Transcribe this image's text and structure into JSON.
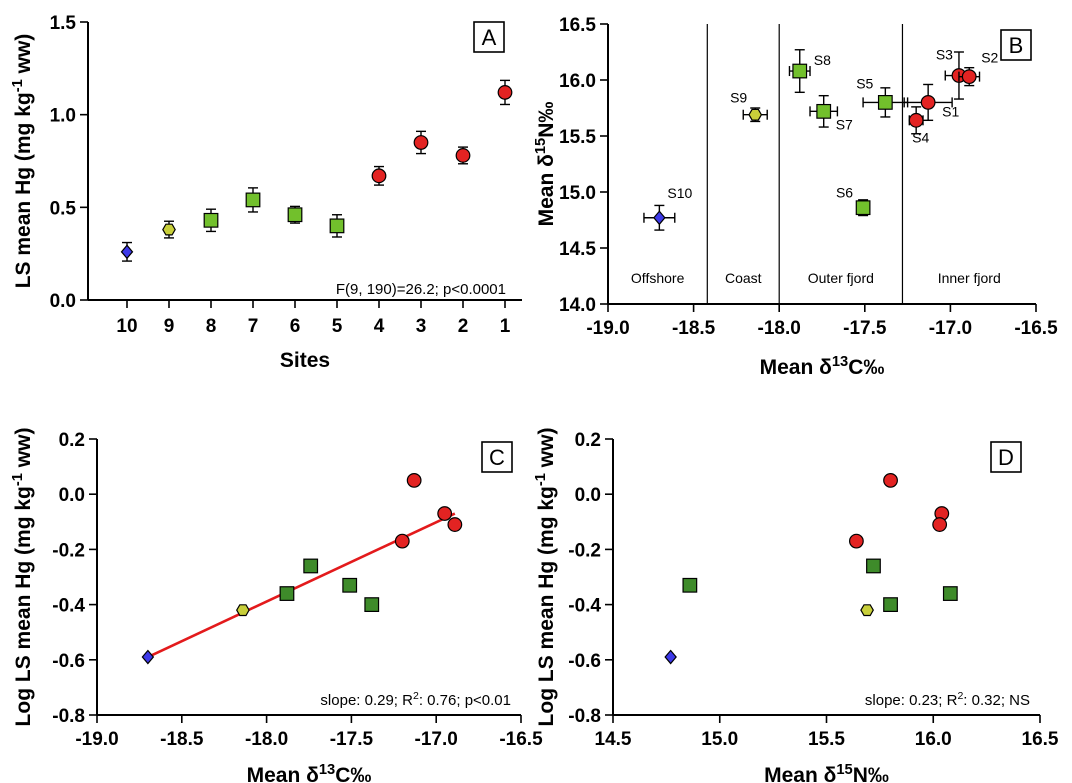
{
  "colors": {
    "inner_fjord": "#e32322",
    "outer_fjord": "#72c02c",
    "outer_fjord_dark": "#3e8b2a",
    "coast": "#c8cf3a",
    "offshore": "#3d39e8",
    "fit_line": "#e31a1c"
  },
  "chart_data": [
    {
      "panel": "A",
      "type": "scatter",
      "xlabel": "Sites",
      "ylabel": "LS mean Hg (mg kg-1 ww)",
      "categories": [
        "10",
        "9",
        "8",
        "7",
        "6",
        "5",
        "4",
        "3",
        "2",
        "1"
      ],
      "ylim": [
        0,
        1.5
      ],
      "yticks": [
        "0.0",
        "0.5",
        "1.0",
        "1.5"
      ],
      "annotation": "F(9, 190)=26.2; p<0.0001",
      "points": [
        {
          "site": "10",
          "y": 0.26,
          "err": 0.05,
          "marker": "diamond",
          "color": "offshore"
        },
        {
          "site": "9",
          "y": 0.38,
          "err": 0.045,
          "marker": "hexagon",
          "color": "coast"
        },
        {
          "site": "8",
          "y": 0.43,
          "err": 0.06,
          "marker": "square",
          "color": "outer_fjord"
        },
        {
          "site": "7",
          "y": 0.54,
          "err": 0.065,
          "marker": "square",
          "color": "outer_fjord"
        },
        {
          "site": "6",
          "y": 0.46,
          "err": 0.045,
          "marker": "square",
          "color": "outer_fjord"
        },
        {
          "site": "5",
          "y": 0.4,
          "err": 0.06,
          "marker": "square",
          "color": "outer_fjord"
        },
        {
          "site": "4",
          "y": 0.67,
          "err": 0.05,
          "marker": "circle",
          "color": "inner_fjord"
        },
        {
          "site": "3",
          "y": 0.85,
          "err": 0.06,
          "marker": "circle",
          "color": "inner_fjord"
        },
        {
          "site": "2",
          "y": 0.78,
          "err": 0.045,
          "marker": "circle",
          "color": "inner_fjord"
        },
        {
          "site": "1",
          "y": 1.12,
          "err": 0.065,
          "marker": "circle",
          "color": "inner_fjord"
        }
      ]
    },
    {
      "panel": "B",
      "type": "scatter",
      "xlabel": "Mean δ13C‰",
      "ylabel": "Mean δ15N‰",
      "xlim": [
        -19.0,
        -16.5
      ],
      "ylim": [
        14.0,
        16.5
      ],
      "xticks": [
        "-19.0",
        "-18.5",
        "-18.0",
        "-17.5",
        "-17.0",
        "-16.5"
      ],
      "yticks": [
        "14.0",
        "14.5",
        "15.0",
        "15.5",
        "16.0",
        "16.5"
      ],
      "region_boundaries": [
        -18.42,
        -18.0,
        -17.28
      ],
      "regions": [
        "Offshore",
        "Coast",
        "Outer fjord",
        "Inner fjord"
      ],
      "points": [
        {
          "label": "S10",
          "x": -18.7,
          "y": 14.77,
          "xerr": 0.09,
          "yerr": 0.11,
          "marker": "diamond",
          "color": "offshore"
        },
        {
          "label": "S9",
          "x": -18.14,
          "y": 15.69,
          "xerr": 0.07,
          "yerr": 0.06,
          "marker": "hexagon",
          "color": "coast"
        },
        {
          "label": "S8",
          "x": -17.88,
          "y": 16.08,
          "xerr": 0.06,
          "yerr": 0.19,
          "marker": "square",
          "color": "outer_fjord"
        },
        {
          "label": "S7",
          "x": -17.74,
          "y": 15.72,
          "xerr": 0.08,
          "yerr": 0.14,
          "marker": "square",
          "color": "outer_fjord"
        },
        {
          "label": "S6",
          "x": -17.51,
          "y": 14.86,
          "xerr": 0.03,
          "yerr": 0.07,
          "marker": "square",
          "color": "outer_fjord"
        },
        {
          "label": "S5",
          "x": -17.38,
          "y": 15.8,
          "xerr": 0.13,
          "yerr": 0.13,
          "marker": "square",
          "color": "outer_fjord"
        },
        {
          "label": "S1",
          "x": -17.13,
          "y": 15.8,
          "xerr": 0.14,
          "yerr": 0.16,
          "marker": "circle",
          "color": "inner_fjord"
        },
        {
          "label": "S4",
          "x": -17.2,
          "y": 15.64,
          "xerr": 0.04,
          "yerr": 0.12,
          "marker": "circle",
          "color": "inner_fjord"
        },
        {
          "label": "S3",
          "x": -16.95,
          "y": 16.04,
          "xerr": 0.08,
          "yerr": 0.21,
          "marker": "circle",
          "color": "inner_fjord"
        },
        {
          "label": "S2",
          "x": -16.89,
          "y": 16.03,
          "xerr": 0.06,
          "yerr": 0.08,
          "marker": "circle",
          "color": "inner_fjord"
        }
      ]
    },
    {
      "panel": "C",
      "type": "scatter",
      "xlabel": "Mean δ13C‰",
      "ylabel": "Log LS mean Hg (mg kg-1 ww)",
      "xlim": [
        -19.0,
        -16.5
      ],
      "ylim": [
        -0.8,
        0.2
      ],
      "xticks": [
        "-19.0",
        "-18.5",
        "-18.0",
        "-17.5",
        "-17.0",
        "-16.5"
      ],
      "yticks": [
        "-0.8",
        "-0.6",
        "-0.4",
        "-0.2",
        "0.0",
        "0.2"
      ],
      "annotation": "slope: 0.29; R2: 0.76; p<0.01",
      "fit": {
        "x": [
          -18.7,
          -16.89
        ],
        "y": [
          -0.59,
          -0.07
        ]
      },
      "points": [
        {
          "x": -18.7,
          "y": -0.59,
          "marker": "diamond",
          "color": "offshore"
        },
        {
          "x": -18.14,
          "y": -0.42,
          "marker": "hexagon",
          "color": "coast"
        },
        {
          "x": -17.88,
          "y": -0.36,
          "marker": "square",
          "color": "outer_fjord_dark"
        },
        {
          "x": -17.74,
          "y": -0.26,
          "marker": "square",
          "color": "outer_fjord_dark"
        },
        {
          "x": -17.51,
          "y": -0.33,
          "marker": "square",
          "color": "outer_fjord_dark"
        },
        {
          "x": -17.38,
          "y": -0.4,
          "marker": "square",
          "color": "outer_fjord_dark"
        },
        {
          "x": -17.2,
          "y": -0.17,
          "marker": "circle",
          "color": "inner_fjord"
        },
        {
          "x": -17.13,
          "y": 0.05,
          "marker": "circle",
          "color": "inner_fjord"
        },
        {
          "x": -16.95,
          "y": -0.07,
          "marker": "circle",
          "color": "inner_fjord"
        },
        {
          "x": -16.89,
          "y": -0.11,
          "marker": "circle",
          "color": "inner_fjord"
        }
      ]
    },
    {
      "panel": "D",
      "type": "scatter",
      "xlabel": "Mean δ15N‰",
      "ylabel": "Log LS mean Hg (mg kg-1 ww)",
      "xlim": [
        14.5,
        16.5
      ],
      "ylim": [
        -0.8,
        0.2
      ],
      "xticks": [
        "14.5",
        "15.0",
        "15.5",
        "16.0",
        "16.5"
      ],
      "yticks": [
        "-0.8",
        "-0.6",
        "-0.4",
        "-0.2",
        "0.0",
        "0.2"
      ],
      "annotation": "slope: 0.23; R2: 0.32; NS",
      "points": [
        {
          "x": 14.77,
          "y": -0.59,
          "marker": "diamond",
          "color": "offshore"
        },
        {
          "x": 15.69,
          "y": -0.42,
          "marker": "hexagon",
          "color": "coast"
        },
        {
          "x": 16.08,
          "y": -0.36,
          "marker": "square",
          "color": "outer_fjord_dark"
        },
        {
          "x": 15.72,
          "y": -0.26,
          "marker": "square",
          "color": "outer_fjord_dark"
        },
        {
          "x": 14.86,
          "y": -0.33,
          "marker": "square",
          "color": "outer_fjord_dark"
        },
        {
          "x": 15.8,
          "y": -0.4,
          "marker": "square",
          "color": "outer_fjord_dark"
        },
        {
          "x": 15.64,
          "y": -0.17,
          "marker": "circle",
          "color": "inner_fjord"
        },
        {
          "x": 15.8,
          "y": 0.05,
          "marker": "circle",
          "color": "inner_fjord"
        },
        {
          "x": 16.04,
          "y": -0.07,
          "marker": "circle",
          "color": "inner_fjord"
        },
        {
          "x": 16.03,
          "y": -0.11,
          "marker": "circle",
          "color": "inner_fjord"
        }
      ]
    }
  ]
}
